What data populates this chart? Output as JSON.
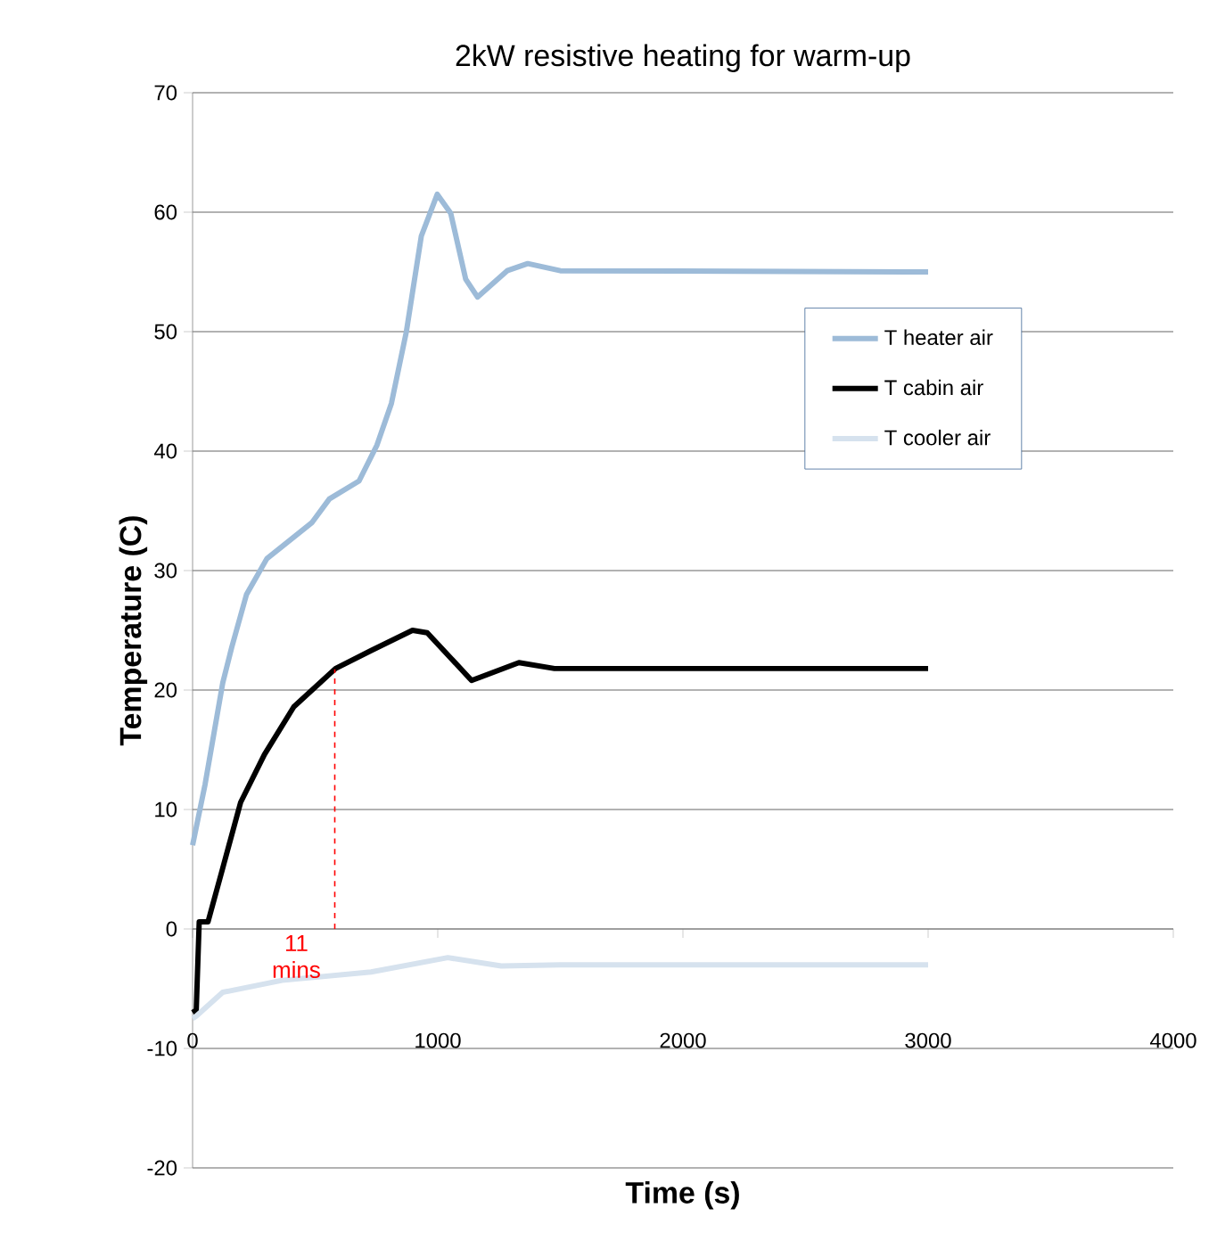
{
  "chart_data": {
    "type": "line",
    "title": "2kW resistive heating for warm-up",
    "xlabel": "Time (s)",
    "ylabel": "Temperature (C)",
    "xlim": [
      0,
      4000
    ],
    "xticks": [
      0,
      1000,
      2000,
      3000,
      4000
    ],
    "ylim": [
      -20,
      70
    ],
    "yticks": [
      -20,
      -10,
      0,
      10,
      20,
      30,
      40,
      50,
      60,
      70
    ],
    "grid": "y",
    "legend": "right",
    "marker": "none",
    "line_style": "solid",
    "series": [
      {
        "name": "T heater air",
        "color": "#9dbbd8",
        "x": [
          0,
          51,
          123,
          160,
          220,
          303,
          486,
          558,
          679,
          752,
          811,
          872,
          933,
          998,
          1053,
          1114,
          1162,
          1283,
          1367,
          1500,
          3000
        ],
        "values": [
          7,
          12.1,
          20.6,
          23.6,
          28,
          31,
          34,
          36,
          37.5,
          40.5,
          44,
          50,
          58,
          61.5,
          59.9,
          54.4,
          52.9,
          55.1,
          55.7,
          55.1,
          55
        ]
      },
      {
        "name": "T cabin air",
        "color": "#000000",
        "x": [
          0,
          15,
          27,
          63,
          123,
          196,
          293,
          413,
          583,
          728,
          897,
          957,
          1138,
          1331,
          1476,
          3000
        ],
        "values": [
          -7,
          -6.8,
          0.6,
          0.6,
          5.1,
          10.6,
          14.6,
          18.6,
          21.8,
          23.3,
          25,
          24.8,
          20.8,
          22.3,
          21.8,
          21.8
        ]
      },
      {
        "name": "T cooler air",
        "color": "#d6e2ee",
        "x": [
          0,
          15,
          123,
          365,
          728,
          1041,
          1259,
          1500,
          3000
        ],
        "values": [
          -7.5,
          -7.3,
          -5.3,
          -4.3,
          -3.6,
          -2.4,
          -3.1,
          -3,
          -3
        ]
      }
    ],
    "ref_lines": [
      {
        "axis": "x",
        "value": 580,
        "label": "11 mins",
        "color": "#ff0000",
        "line_style": "dashed"
      }
    ]
  }
}
